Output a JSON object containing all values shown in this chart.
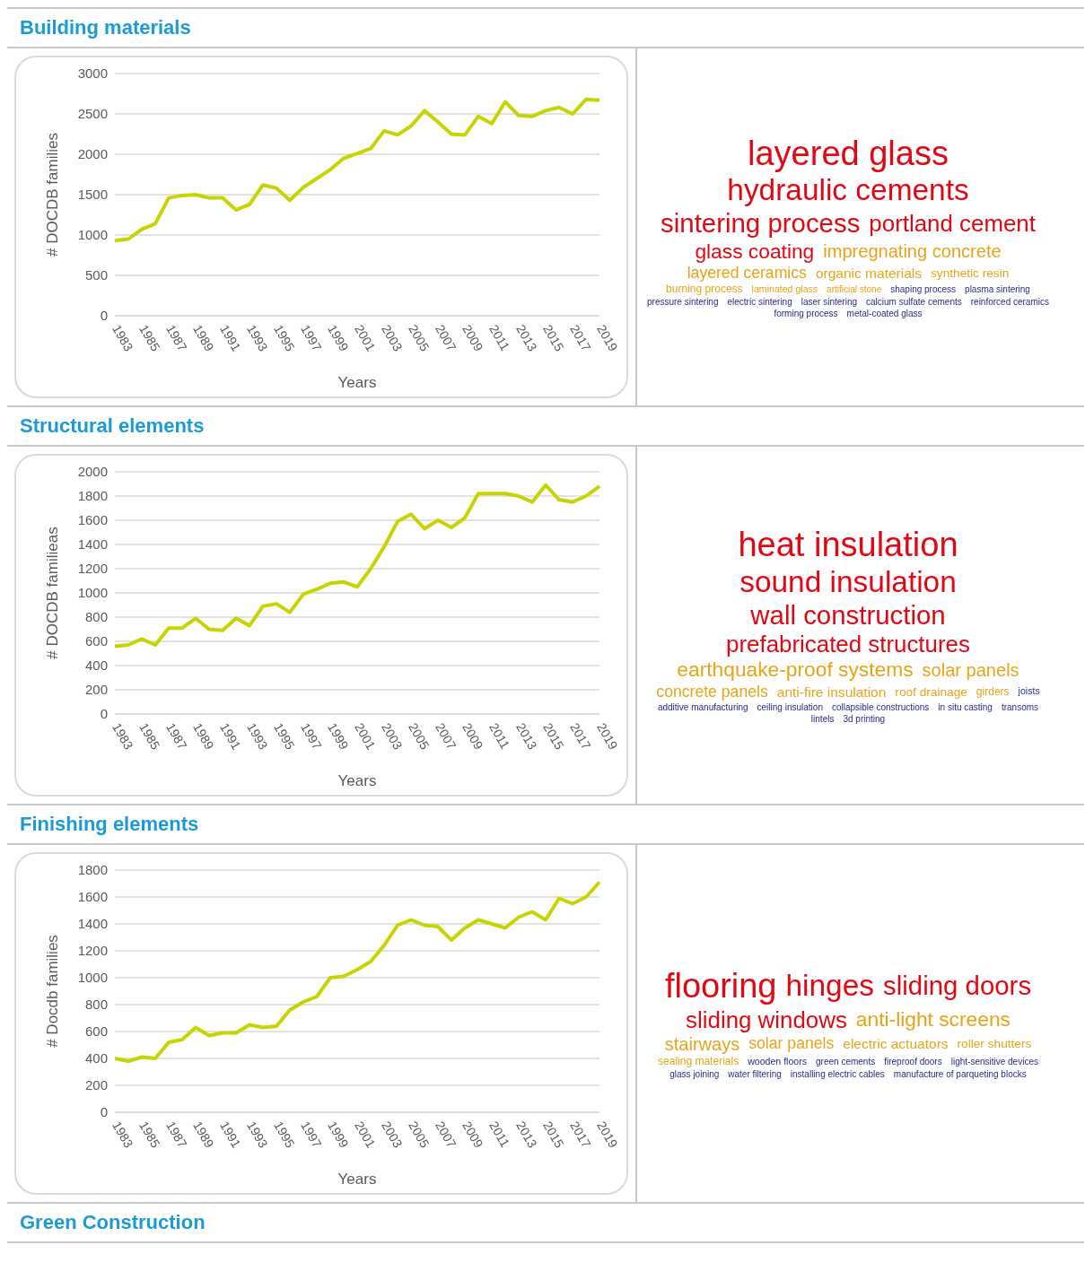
{
  "chart_data": [
    {
      "type": "line",
      "title": "Building materials",
      "xlabel": "Years",
      "ylabel": "# DOCDB families",
      "categories": [
        "1983",
        null,
        "1985",
        null,
        "1987",
        null,
        "1989",
        null,
        "1991",
        null,
        "1993",
        null,
        "1995",
        null,
        "1997",
        null,
        "1999",
        null,
        "2001",
        null,
        "2003",
        null,
        "2005",
        null,
        "2007",
        null,
        "2009",
        null,
        "2011",
        null,
        "2013",
        null,
        "2015",
        null,
        "2017",
        null,
        "2019"
      ],
      "series": [
        {
          "color": "#c8d400",
          "values": [
            930,
            950,
            1070,
            1140,
            1460,
            1490,
            1500,
            1460,
            1460,
            1310,
            1380,
            1620,
            1580,
            1430,
            1590,
            1700,
            1810,
            1950,
            2010,
            2070,
            2290,
            2240,
            2350,
            2540,
            2400,
            2250,
            2240,
            2470,
            2380,
            2650,
            2480,
            2470,
            2540,
            2580,
            2500,
            2680,
            2670
          ]
        }
      ],
      "ylim": [
        0,
        3000
      ],
      "yticks": [
        0,
        500,
        1000,
        1500,
        2000,
        2500,
        3000
      ],
      "grid": "y",
      "marker": "none"
    },
    {
      "type": "other",
      "annotations": [
        "layered glass",
        "hydraulic cements",
        "sintering process",
        "portland cement",
        "glass coating",
        "impregnating concrete",
        "layered ceramics",
        "organic materials",
        "synthetic resin",
        "burning process",
        "laminated glass",
        "artificial stone",
        "shaping process",
        "plasma sintering",
        "pressure sintering",
        "electric sintering",
        "laser sintering",
        "calcium sulfate cements",
        "reinforced ceramics",
        "forming process",
        "metal-coated glass"
      ]
    },
    {
      "type": "line",
      "title": "Structural elements",
      "xlabel": "Years",
      "ylabel": "# DOCDB familieas",
      "categories": [
        "1983",
        null,
        "1985",
        null,
        "1987",
        null,
        "1989",
        null,
        "1991",
        null,
        "1993",
        null,
        "1995",
        null,
        "1997",
        null,
        "1999",
        null,
        "2001",
        null,
        "2003",
        null,
        "2005",
        null,
        "2007",
        null,
        "2009",
        null,
        "2011",
        null,
        "2013",
        null,
        "2015",
        null,
        "2017",
        null,
        "2019"
      ],
      "series": [
        {
          "color": "#c8d400",
          "values": [
            560,
            570,
            620,
            570,
            710,
            710,
            790,
            700,
            690,
            790,
            730,
            890,
            910,
            840,
            990,
            1030,
            1080,
            1090,
            1050,
            1200,
            1380,
            1590,
            1650,
            1530,
            1600,
            1540,
            1620,
            1820,
            1820,
            1820,
            1800,
            1750,
            1890,
            1770,
            1750,
            1800,
            1880
          ]
        }
      ],
      "ylim": [
        0,
        2000
      ],
      "yticks": [
        0,
        200,
        400,
        600,
        800,
        1000,
        1200,
        1400,
        1600,
        1800,
        2000
      ],
      "grid": "y",
      "marker": "none"
    },
    {
      "type": "other",
      "annotations": [
        "heat insulation",
        "sound insulation",
        "wall construction",
        "prefabricated structures",
        "earthquake-proof systems",
        "solar panels",
        "concrete panels",
        "anti-fire insulation",
        "roof drainage",
        "girders",
        "joists",
        "additive manufacturing",
        "ceiling insulation",
        "collapsible constructions",
        "in situ casting",
        "transoms",
        "lintels",
        "3d printing"
      ]
    },
    {
      "type": "line",
      "title": "Finishing elements",
      "xlabel": "Years",
      "ylabel": "# Docdb families",
      "categories": [
        "1983",
        null,
        "1985",
        null,
        "1987",
        null,
        "1989",
        null,
        "1991",
        null,
        "1993",
        null,
        "1995",
        null,
        "1997",
        null,
        "1999",
        null,
        "2001",
        null,
        "2003",
        null,
        "2005",
        null,
        "2007",
        null,
        "2009",
        null,
        "2011",
        null,
        "2013",
        null,
        "2015",
        null,
        "2017",
        null,
        "2019"
      ],
      "series": [
        {
          "color": "#c8d400",
          "values": [
            400,
            380,
            410,
            400,
            520,
            540,
            630,
            570,
            590,
            590,
            650,
            630,
            640,
            760,
            820,
            860,
            1000,
            1010,
            1060,
            1120,
            1240,
            1390,
            1430,
            1390,
            1380,
            1280,
            1370,
            1430,
            1400,
            1370,
            1450,
            1490,
            1430,
            1590,
            1550,
            1600,
            1710
          ]
        }
      ],
      "ylim": [
        0,
        1800
      ],
      "yticks": [
        0,
        200,
        400,
        600,
        800,
        1000,
        1200,
        1400,
        1600,
        1800
      ],
      "grid": "y",
      "marker": "none"
    },
    {
      "type": "other",
      "annotations": [
        "flooring",
        "hinges",
        "sliding doors",
        "sliding windows",
        "anti-light screens",
        "stairways",
        "solar panels",
        "electric actuators",
        "roller shutters",
        "sealing materials",
        "wooden floors",
        "green cements",
        "fireproof doors",
        "light-sensitive devices",
        "glass joining",
        "water filtering",
        "installing electric cables",
        "manufacture of parqueting blocks"
      ]
    },
    {
      "type": "other",
      "title": "Green Construction"
    }
  ]
}
